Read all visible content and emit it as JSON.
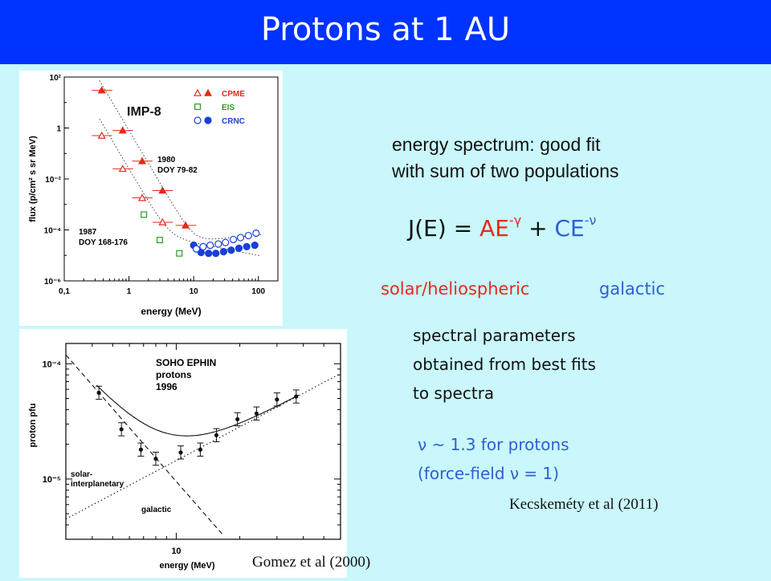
{
  "header": {
    "title": "Protons at 1 AU"
  },
  "text": {
    "fit_line1": "energy spectrum: good fit",
    "fit_line2": "with sum of two populations",
    "formula_prefix": "J(E) = ",
    "formula_term1": "AE",
    "formula_exp1": "-γ",
    "formula_plus": " + ",
    "formula_term2": "CE",
    "formula_exp2": "-ν",
    "label_solar": "solar/heliospheric",
    "label_galactic": "galactic",
    "params_line1": "spectral parameters",
    "params_line2": "obtained from best fits",
    "params_line3": "to spectra",
    "nu_line1": "ν ~ 1.3 for protons",
    "nu_line2": "(force-field ν = 1)",
    "ref_kecskemety": "Kecskeméty et al (2011)",
    "ref_gomez": "Gomez et al (2000)"
  },
  "colors": {
    "title_bar": "#0033ff",
    "background": "#c9f7fb",
    "solar": "#e8281c",
    "galactic": "#2f5fd0",
    "eis": "#2a9a2a"
  },
  "chart_data": [
    {
      "type": "scatter",
      "annotation": "IMP-8",
      "xlabel": "energy  (MeV)",
      "ylabel": "flux (p/cm² s sr MeV)",
      "xscale": "log",
      "yscale": "log",
      "xlim": [
        0.1,
        200
      ],
      "ylim": [
        1e-06,
        100
      ],
      "xticks": [
        0.1,
        1,
        10,
        100
      ],
      "xtick_labels": [
        "0,1",
        "1",
        "10",
        "100"
      ],
      "yticks": [
        100,
        1,
        0.01,
        0.0001,
        1e-06
      ],
      "ytick_labels": [
        "10²",
        "1",
        "10⁻²",
        "10⁻⁴",
        "10⁻⁶"
      ],
      "legend": [
        {
          "label": "CPME",
          "color": "#e8281c",
          "markers": [
            "triangle-open",
            "triangle"
          ]
        },
        {
          "label": "EIS",
          "color": "#2a9a2a",
          "markers": [
            "square-open"
          ]
        },
        {
          "label": "CRNC",
          "color": "#1a3fd8",
          "markers": [
            "circle-open",
            "circle"
          ]
        }
      ],
      "legend_position": "top-right",
      "period_labels": [
        {
          "lines": [
            "1980",
            "DOY 79-82"
          ]
        },
        {
          "lines": [
            "1987",
            "DOY 168-176"
          ]
        }
      ],
      "series": [
        {
          "name": "CPME",
          "period": "1980 DOY 79-82",
          "marker": "triangle",
          "color": "#e8281c",
          "x": [
            0.38,
            0.8,
            1.6,
            3.3,
            7.5
          ],
          "y": [
            30,
            0.8,
            0.05,
            0.0035,
            0.00015
          ]
        },
        {
          "name": "CPME",
          "period": "1987 DOY 168-176",
          "marker": "triangle-open",
          "color": "#e8281c",
          "x": [
            0.38,
            0.8,
            1.6,
            3.3
          ],
          "y": [
            0.5,
            0.025,
            0.0018,
            0.0002
          ]
        },
        {
          "name": "EIS",
          "period": "1987 DOY 168-176",
          "marker": "square-open",
          "color": "#2a9a2a",
          "x": [
            1.7,
            3.0,
            6.0
          ],
          "y": [
            0.0004,
            4e-05,
            1.2e-05
          ]
        },
        {
          "name": "CRNC",
          "period": "1980 DOY 79-82",
          "marker": "circle",
          "color": "#1a3fd8",
          "x": [
            10,
            13,
            17,
            22,
            29,
            38,
            50,
            66,
            88
          ],
          "y": [
            2.5e-05,
            1.3e-05,
            1.2e-05,
            1.2e-05,
            1.4e-05,
            1.6e-05,
            1.9e-05,
            2.2e-05,
            2.5e-05
          ]
        },
        {
          "name": "CRNC",
          "period": "1987 DOY 168-176",
          "marker": "circle-open",
          "color": "#1a3fd8",
          "x": [
            11,
            14,
            18,
            24,
            31,
            41,
            53,
            70,
            92
          ],
          "y": [
            1.8e-05,
            2.2e-05,
            2.5e-05,
            2.8e-05,
            3.2e-05,
            4.2e-05,
            5e-05,
            6e-05,
            7.5e-05
          ]
        }
      ]
    },
    {
      "type": "scatter",
      "annotation": "SOHO EPHIN protons 1996",
      "title_lines": [
        "SOHO EPHIN",
        "protons",
        "1996"
      ],
      "xlabel": "energy (MeV)",
      "ylabel": "proton pfu",
      "xscale": "log",
      "yscale": "log",
      "xlim": [
        3,
        60
      ],
      "ylim": [
        3e-06,
        0.00015
      ],
      "xticks": [
        10
      ],
      "xtick_labels": [
        "10"
      ],
      "yticks": [
        0.0001,
        1e-05
      ],
      "ytick_labels": [
        "10⁻⁴",
        "10⁻⁵"
      ],
      "component_labels": [
        "solar-interplanetary",
        "galactic"
      ],
      "series": [
        {
          "name": "",
          "marker": "circle",
          "color": "#111111",
          "x": [
            4.3,
            5.5,
            6.8,
            8.0,
            10.5,
            13.0,
            15.5,
            19.5,
            24.0,
            30.0,
            37.0
          ],
          "y": [
            5.6e-05,
            2.7e-05,
            1.8e-05,
            1.5e-05,
            1.7e-05,
            1.8e-05,
            2.4e-05,
            3.3e-05,
            3.7e-05,
            4.9e-05,
            5.2e-05
          ]
        }
      ]
    }
  ]
}
